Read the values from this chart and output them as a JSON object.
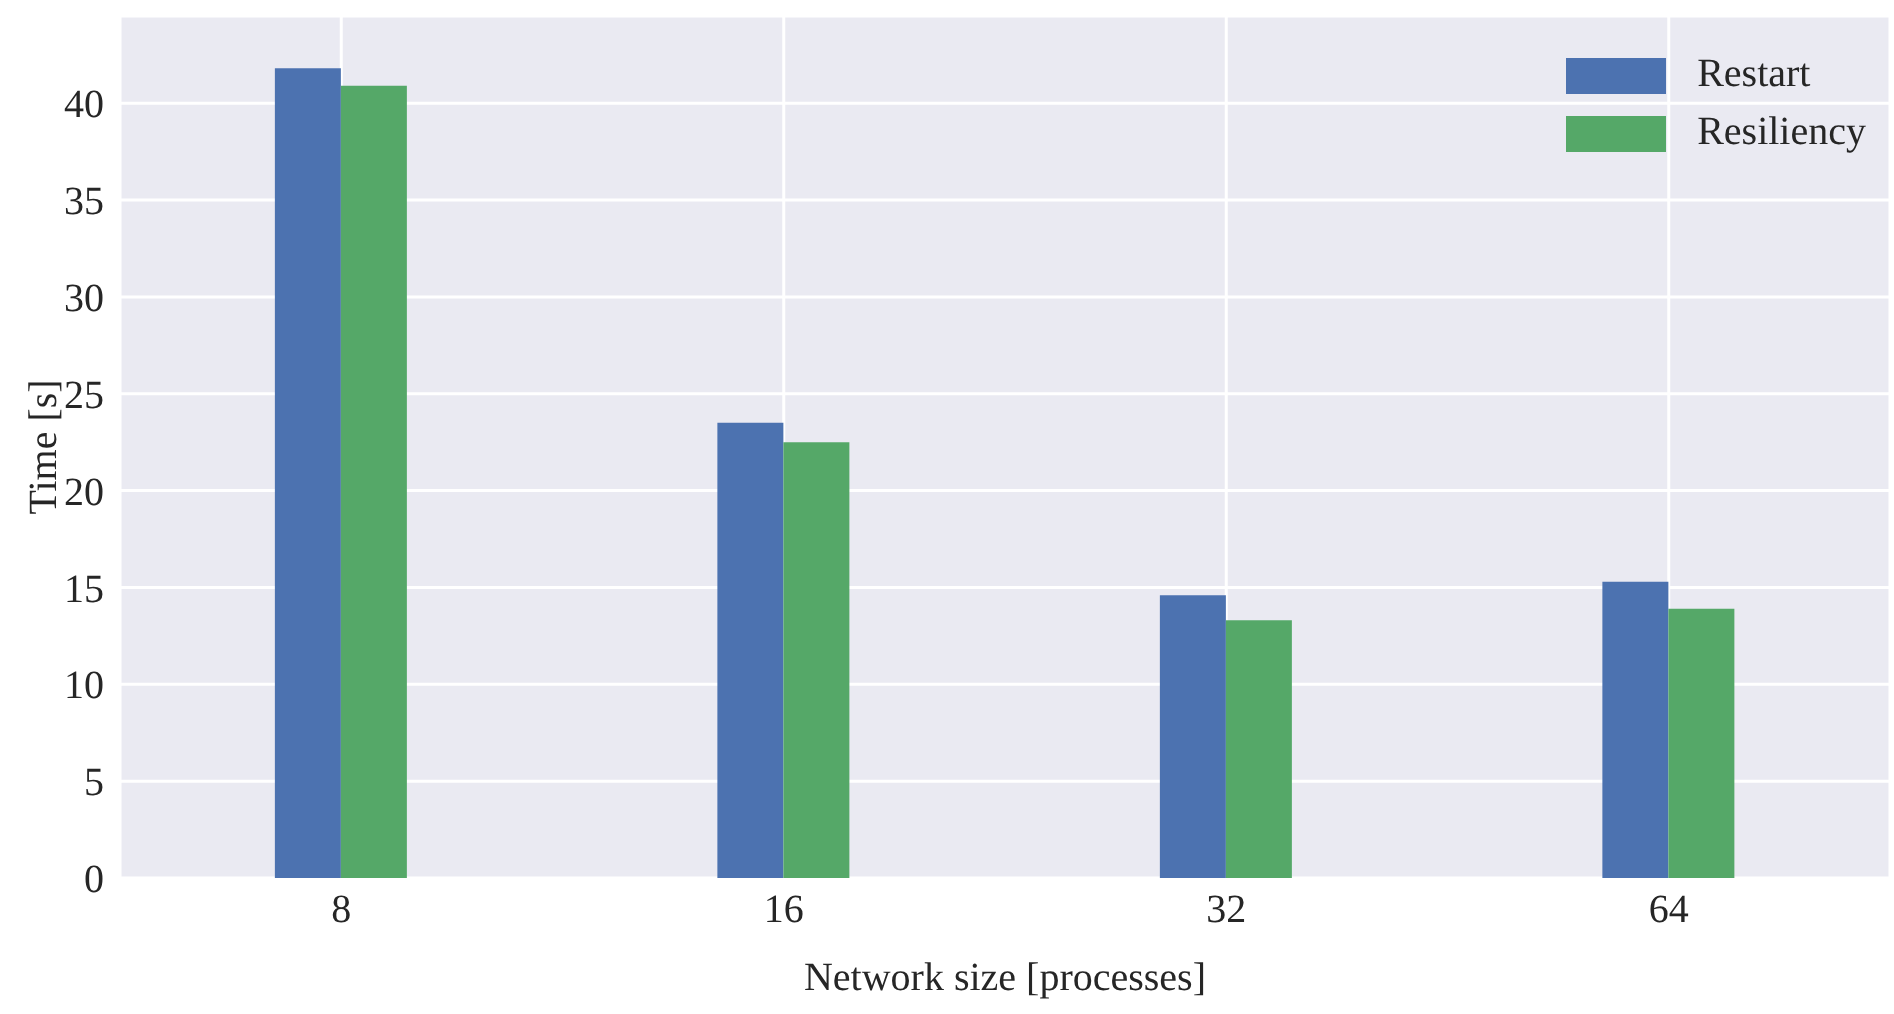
{
  "chart_data": {
    "type": "bar",
    "xlabel": "Network size [processes]",
    "ylabel": "Time [s]",
    "categories": [
      "8",
      "16",
      "32",
      "64"
    ],
    "series": [
      {
        "name": "Restart",
        "color": "#4c72b0",
        "values": [
          41.8,
          23.5,
          14.6,
          15.3
        ]
      },
      {
        "name": "Resiliency",
        "color": "#55a868",
        "values": [
          40.9,
          22.5,
          13.3,
          13.9
        ]
      }
    ],
    "ylim": [
      0,
      44.5
    ],
    "yticks": [
      0,
      5,
      10,
      15,
      20,
      25,
      30,
      35,
      40
    ],
    "grid": true,
    "legend": "top right"
  }
}
